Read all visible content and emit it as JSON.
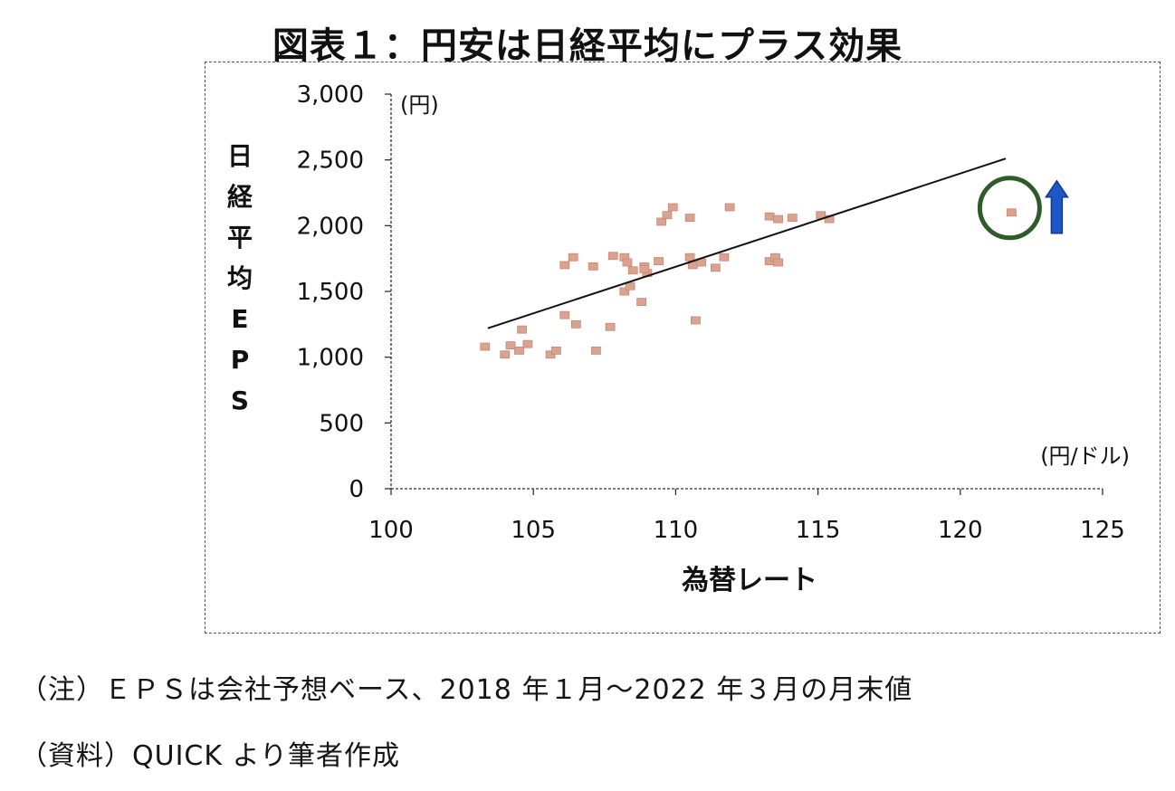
{
  "figure_title": "図表１：円安は日経平均にプラス効果",
  "notes": {
    "note": "（注）ＥＰＳは会社予想ベース、2018 年１月～2022 年３月の月末値",
    "source": "（資料）QUICK より筆者作成"
  },
  "chart_data": {
    "type": "scatter",
    "xlabel": "為替レート",
    "ylabel": "日経平均ＥＰＳ",
    "ylabel_chars": [
      "日",
      "経",
      "平",
      "均",
      "E",
      "P",
      "S"
    ],
    "x_unit": "(円/ドル)",
    "y_unit": "(円)",
    "xlim": [
      100,
      125
    ],
    "ylim": [
      0,
      3000
    ],
    "x_ticks": [
      "100",
      "105",
      "110",
      "115",
      "120",
      "125"
    ],
    "y_ticks": [
      "0",
      "500",
      "1,000",
      "1,500",
      "2,000",
      "2,500",
      "3,000"
    ],
    "grid": false,
    "legend": "none",
    "colors": {
      "points": "#d9a38f",
      "trendline": "#111111",
      "highlight_circle": "#2f5a2a",
      "arrow": "#1f57c8"
    },
    "series": [
      {
        "points": [
          [
            103.3,
            1080
          ],
          [
            104.2,
            1090
          ],
          [
            104.5,
            1050
          ],
          [
            104.8,
            1100
          ],
          [
            104.6,
            1210
          ],
          [
            104.0,
            1020
          ],
          [
            105.6,
            1020
          ],
          [
            105.8,
            1050
          ],
          [
            106.1,
            1320
          ],
          [
            106.5,
            1250
          ],
          [
            107.2,
            1050
          ],
          [
            107.7,
            1230
          ],
          [
            106.1,
            1700
          ],
          [
            106.4,
            1760
          ],
          [
            107.1,
            1690
          ],
          [
            107.8,
            1770
          ],
          [
            108.2,
            1760
          ],
          [
            108.3,
            1720
          ],
          [
            108.5,
            1660
          ],
          [
            108.9,
            1690
          ],
          [
            109.0,
            1640
          ],
          [
            109.4,
            1730
          ],
          [
            108.2,
            1500
          ],
          [
            108.4,
            1540
          ],
          [
            108.8,
            1420
          ],
          [
            108.9,
            1670
          ],
          [
            109.5,
            2030
          ],
          [
            109.7,
            2080
          ],
          [
            109.9,
            2140
          ],
          [
            110.5,
            1760
          ],
          [
            110.6,
            1700
          ],
          [
            110.9,
            1720
          ],
          [
            111.4,
            1680
          ],
          [
            111.7,
            1760
          ],
          [
            110.7,
            1280
          ],
          [
            110.5,
            2060
          ],
          [
            111.9,
            2140
          ],
          [
            113.3,
            1730
          ],
          [
            113.5,
            1760
          ],
          [
            113.6,
            1720
          ],
          [
            113.3,
            2070
          ],
          [
            113.6,
            2050
          ],
          [
            114.1,
            2060
          ],
          [
            115.1,
            2080
          ],
          [
            115.4,
            2050
          ],
          [
            121.8,
            2100
          ]
        ]
      }
    ],
    "trendline": {
      "x": [
        103.4,
        121.6
      ],
      "y": [
        1220,
        2510
      ]
    },
    "annotations": {
      "highlight_point": [
        121.8,
        2100
      ],
      "arrow_direction": "up"
    }
  }
}
